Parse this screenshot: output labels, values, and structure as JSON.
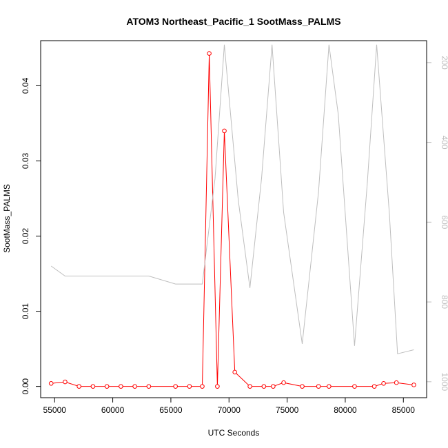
{
  "chart_data": {
    "type": "line",
    "title": "ATOM3 Northeast_Pacific_1 SootMass_PALMS",
    "xlabel": "UTC Seconds",
    "ylabel": "SootMass_PALMS",
    "xlim": [
      53800,
      87000
    ],
    "ylim": [
      -0.0015,
      0.046
    ],
    "y2lim": [
      1040,
      145
    ],
    "y2_reversed": true,
    "grid": false,
    "legend": "none",
    "x_ticks": [
      55000,
      60000,
      65000,
      70000,
      75000,
      80000,
      85000
    ],
    "x_tick_labels": [
      "55000",
      "60000",
      "65000",
      "70000",
      "75000",
      "80000",
      "85000"
    ],
    "y_ticks": [
      0.0,
      0.01,
      0.02,
      0.03,
      0.04
    ],
    "y_tick_labels": [
      "0.00",
      "0.01",
      "0.02",
      "0.03",
      "0.04"
    ],
    "y2_ticks": [
      200,
      400,
      600,
      800,
      1000
    ],
    "y2_tick_labels": [
      "200",
      "400",
      "600",
      "800",
      "1000"
    ],
    "series": [
      {
        "axis": "left",
        "color": "#ff0000",
        "style": "line-points",
        "x": [
          54700,
          55900,
          57100,
          58300,
          59500,
          60700,
          61900,
          63100,
          65400,
          66600,
          67700,
          68300,
          69000,
          69600,
          70500,
          71800,
          73000,
          73800,
          74700,
          76300,
          77700,
          78600,
          80800,
          82500,
          83300,
          84400,
          85900
        ],
        "values": [
          0.0004,
          0.0006,
          0.0,
          0.0,
          0.0,
          0.0,
          0.0,
          0.0,
          0.0,
          0.0,
          0.0,
          0.0443,
          0.0,
          0.034,
          0.0019,
          0.0,
          0.0,
          0.0,
          0.0005,
          0.0,
          0.0,
          0.0,
          0.0,
          0.0,
          0.0004,
          0.0005,
          0.0002
        ]
      },
      {
        "axis": "right",
        "color": "#bebebe",
        "style": "line",
        "x": [
          54700,
          55900,
          63100,
          65400,
          66600,
          67700,
          68800,
          69600,
          70800,
          71800,
          72800,
          73700,
          74700,
          76300,
          77700,
          78600,
          79400,
          80800,
          81900,
          82700,
          83800,
          84500,
          85900
        ],
        "values": [
          710,
          735,
          735,
          755,
          755,
          755,
          490,
          155,
          545,
          765,
          490,
          155,
          575,
          905,
          525,
          155,
          330,
          910,
          500,
          155,
          580,
          930,
          920
        ]
      }
    ]
  }
}
